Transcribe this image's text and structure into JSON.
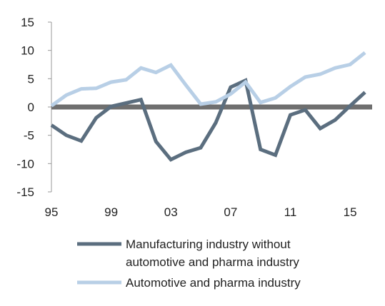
{
  "chart_data": {
    "type": "line",
    "x_tick_labels": [
      "95",
      "99",
      "03",
      "07",
      "11",
      "15"
    ],
    "x": [
      1995,
      1996,
      1997,
      1998,
      1999,
      2000,
      2001,
      2002,
      2003,
      2004,
      2005,
      2006,
      2007,
      2008,
      2009,
      2010,
      2011,
      2012,
      2013,
      2014,
      2015,
      2016
    ],
    "ylim": [
      -15,
      15
    ],
    "yticks": [
      15,
      10,
      5,
      0,
      -5,
      -10,
      -15
    ],
    "y_tick_labels": [
      "15",
      "10",
      "5",
      "0",
      "-5",
      "-10",
      "-15"
    ],
    "grid": false,
    "zero_line": true,
    "legend_position": "bottom",
    "series": [
      {
        "name_lines": [
          "Manufacturing industry without",
          "automotive and pharma industry"
        ],
        "color": "#5b6e7f",
        "values": [
          -3.2,
          -5.0,
          -6.0,
          -1.9,
          0.1,
          0.7,
          1.3,
          -6.1,
          -9.3,
          -8.0,
          -7.2,
          -2.8,
          3.5,
          4.7,
          -7.5,
          -8.5,
          -1.4,
          -0.5,
          -3.8,
          -2.3,
          0.2,
          2.6
        ]
      },
      {
        "name_lines": [
          "Automotive and pharma industry"
        ],
        "color": "#b8cfe6",
        "values": [
          0.2,
          2.1,
          3.2,
          3.3,
          4.4,
          4.8,
          6.9,
          6.1,
          7.4,
          3.9,
          0.5,
          0.9,
          2.3,
          4.4,
          0.8,
          1.6,
          3.6,
          5.3,
          5.8,
          6.9,
          7.5,
          9.6
        ]
      }
    ],
    "zero_line_color": "#6f6f6f"
  }
}
